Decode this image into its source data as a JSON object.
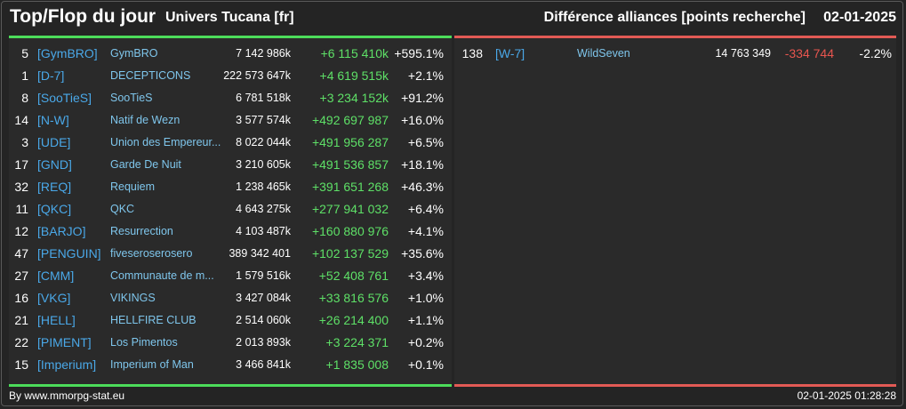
{
  "header": {
    "title": "Top/Flop du jour",
    "universe": "Univers Tucana [fr]",
    "stat": "Différence alliances [points recherche]",
    "date": "02-01-2025"
  },
  "colors": {
    "positive": "#5ee067",
    "negative": "#e8554f",
    "tag": "#4aa8e8",
    "name": "#7fc6ec",
    "top_bar": "#4cdc5a",
    "flop_bar": "#e25a55"
  },
  "top": [
    {
      "rank": "5",
      "tag": "[GymBRO]",
      "name": "GymBRO",
      "points": "7 142 986k",
      "diff": "+6 115 410k",
      "pct": "+595.1%"
    },
    {
      "rank": "1",
      "tag": "[D-7]",
      "name": "DECEPTICONS",
      "points": "222 573 647k",
      "diff": "+4 619 515k",
      "pct": "+2.1%"
    },
    {
      "rank": "8",
      "tag": "[SooTieS]",
      "name": "SooTieS",
      "points": "6 781 518k",
      "diff": "+3 234 152k",
      "pct": "+91.2%"
    },
    {
      "rank": "14",
      "tag": "[N-W]",
      "name": "Natif de Wezn",
      "points": "3 577 574k",
      "diff": "+492 697 987",
      "pct": "+16.0%"
    },
    {
      "rank": "3",
      "tag": "[UDE]",
      "name": "Union des Empereur...",
      "points": "8 022 044k",
      "diff": "+491 956 287",
      "pct": "+6.5%"
    },
    {
      "rank": "17",
      "tag": "[GND]",
      "name": "Garde De Nuit",
      "points": "3 210 605k",
      "diff": "+491 536 857",
      "pct": "+18.1%"
    },
    {
      "rank": "32",
      "tag": "[REQ]",
      "name": "Requiem",
      "points": "1 238 465k",
      "diff": "+391 651 268",
      "pct": "+46.3%"
    },
    {
      "rank": "11",
      "tag": "[QKC]",
      "name": "QKC",
      "points": "4 643 275k",
      "diff": "+277 941 032",
      "pct": "+6.4%"
    },
    {
      "rank": "12",
      "tag": "[BARJO]",
      "name": "Resurrection",
      "points": "4 103 487k",
      "diff": "+160 880 976",
      "pct": "+4.1%"
    },
    {
      "rank": "47",
      "tag": "[PENGUIN]",
      "name": "fiveseroserosero",
      "points": "389 342 401",
      "diff": "+102 137 529",
      "pct": "+35.6%"
    },
    {
      "rank": "27",
      "tag": "[CMM]",
      "name": "Communaute de m...",
      "points": "1 579 516k",
      "diff": "+52 408 761",
      "pct": "+3.4%"
    },
    {
      "rank": "16",
      "tag": "[VKG]",
      "name": "VIKINGS",
      "points": "3 427 084k",
      "diff": "+33 816 576",
      "pct": "+1.0%"
    },
    {
      "rank": "21",
      "tag": "[HELL]",
      "name": "HELLFIRE CLUB",
      "points": "2 514 060k",
      "diff": "+26 214 400",
      "pct": "+1.1%"
    },
    {
      "rank": "22",
      "tag": "[PIMENT]",
      "name": "Los Pimentos",
      "points": "2 013 893k",
      "diff": "+3 224 371",
      "pct": "+0.2%"
    },
    {
      "rank": "15",
      "tag": "[Imperium]",
      "name": "Imperium of Man",
      "points": "3 466 841k",
      "diff": "+1 835 008",
      "pct": "+0.1%"
    }
  ],
  "flop": [
    {
      "rank": "138",
      "tag": "[W-7]",
      "name": "WildSeven",
      "points": "14 763 349",
      "diff": "-334 744",
      "pct": "-2.2%"
    }
  ],
  "footer": {
    "credit": "By www.mmorpg-stat.eu",
    "timestamp": "02-01-2025 01:28:28"
  }
}
